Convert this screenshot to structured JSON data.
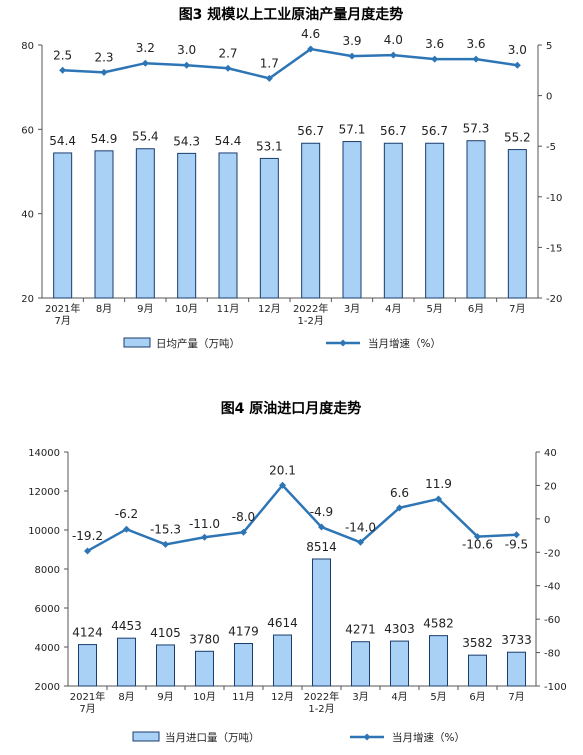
{
  "colors": {
    "bar_fill": "#a9d0f5",
    "bar_stroke": "#1a3d6e",
    "line": "#2e75b6"
  },
  "chart_data": [
    {
      "type": "bar+line",
      "title": "图3  规模以上工业原油产量月度走势",
      "categories": [
        "2021年\n7月",
        "8月",
        "9月",
        "10月",
        "11月",
        "12月",
        "2022年\n1-2月",
        "3月",
        "4月",
        "5月",
        "6月",
        "7月"
      ],
      "series": [
        {
          "name": "日均产量（万吨）",
          "kind": "bar",
          "axis": "left",
          "values": [
            54.4,
            54.9,
            55.4,
            54.3,
            54.4,
            53.1,
            56.7,
            57.1,
            56.7,
            56.7,
            57.3,
            55.2
          ]
        },
        {
          "name": "当月增速（%）",
          "kind": "line",
          "axis": "right",
          "values": [
            2.5,
            2.3,
            3.2,
            3.0,
            2.7,
            1.7,
            4.6,
            3.9,
            4.0,
            3.6,
            3.6,
            3.0
          ]
        }
      ],
      "ylim_left": [
        20,
        80
      ],
      "yticks_left": [
        20,
        40,
        60,
        80
      ],
      "ylim_right": [
        -20,
        5
      ],
      "yticks_right": [
        -20,
        -15,
        -10,
        -5,
        0,
        5
      ],
      "grid": false,
      "legend": "bottom"
    },
    {
      "type": "bar+line",
      "title": "图4  原油进口月度走势",
      "categories": [
        "2021年\n7月",
        "8月",
        "9月",
        "10月",
        "11月",
        "12月",
        "2022年\n1-2月",
        "3月",
        "4月",
        "5月",
        "6月",
        "7月"
      ],
      "series": [
        {
          "name": "当月进口量（万吨）",
          "kind": "bar",
          "axis": "left",
          "values": [
            4124,
            4453,
            4105,
            3780,
            4179,
            4614,
            8514,
            4271,
            4303,
            4582,
            3582,
            3733
          ]
        },
        {
          "name": "当月增速（%）",
          "kind": "line",
          "axis": "right",
          "values": [
            -19.2,
            -6.2,
            -15.3,
            -11.0,
            -8.0,
            20.1,
            -4.9,
            -14.0,
            6.6,
            11.9,
            -10.6,
            -9.5
          ]
        }
      ],
      "ylim_left": [
        2000,
        14000
      ],
      "yticks_left": [
        2000,
        4000,
        6000,
        8000,
        10000,
        12000,
        14000
      ],
      "ylim_right": [
        -100,
        40
      ],
      "yticks_right": [
        -100,
        -80,
        -60,
        -40,
        -20,
        0,
        20,
        40
      ],
      "grid": false,
      "legend": "bottom"
    }
  ]
}
